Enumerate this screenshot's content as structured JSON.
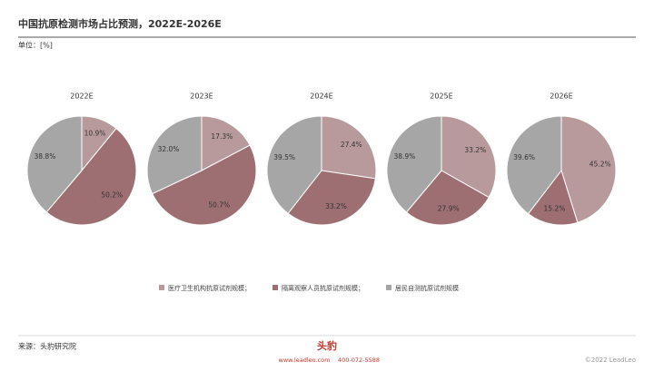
{
  "header": {
    "title": "中国抗原检测市场占比预测，2022E-2026E",
    "unit": "单位：[%]"
  },
  "chart_data": [
    {
      "type": "pie",
      "title": "2022E",
      "categories": [
        "医疗卫生机构抗原试剂规模；",
        "隔离观察人员抗原试剂规模；",
        "居民自测抗原试剂规模"
      ],
      "colors": [
        "#b99a9c",
        "#9e6f72",
        "#a6a6a6"
      ],
      "values": [
        10.9,
        50.2,
        38.8
      ],
      "value_labels": [
        "10.9%",
        "50.2%",
        "38.8%"
      ]
    },
    {
      "type": "pie",
      "title": "2023E",
      "categories": [
        "医疗卫生机构抗原试剂规模；",
        "隔离观察人员抗原试剂规模；",
        "居民自测抗原试剂规模"
      ],
      "colors": [
        "#b99a9c",
        "#9e6f72",
        "#a6a6a6"
      ],
      "values": [
        17.3,
        50.7,
        32.0
      ],
      "value_labels": [
        "17.3%",
        "50.7%",
        "32.0%"
      ]
    },
    {
      "type": "pie",
      "title": "2024E",
      "categories": [
        "医疗卫生机构抗原试剂规模；",
        "隔离观察人员抗原试剂规模；",
        "居民自测抗原试剂规模"
      ],
      "colors": [
        "#b99a9c",
        "#9e6f72",
        "#a6a6a6"
      ],
      "values": [
        27.4,
        33.2,
        39.5
      ],
      "value_labels": [
        "27.4%",
        "33.2%",
        "39.5%"
      ]
    },
    {
      "type": "pie",
      "title": "2025E",
      "categories": [
        "医疗卫生机构抗原试剂规模；",
        "隔离观察人员抗原试剂规模；",
        "居民自测抗原试剂规模"
      ],
      "colors": [
        "#b99a9c",
        "#9e6f72",
        "#a6a6a6"
      ],
      "values": [
        33.2,
        27.9,
        38.9
      ],
      "value_labels": [
        "33.2%",
        "27.9%",
        "38.9%"
      ]
    },
    {
      "type": "pie",
      "title": "2026E",
      "categories": [
        "医疗卫生机构抗原试剂规模；",
        "隔离观察人员抗原试剂规模；",
        "居民自测抗原试剂规模"
      ],
      "colors": [
        "#b99a9c",
        "#9e6f72",
        "#a6a6a6"
      ],
      "values": [
        45.2,
        15.2,
        39.6
      ],
      "value_labels": [
        "45.2%",
        "15.2%",
        "39.6%"
      ]
    }
  ],
  "footer": {
    "source": "来源：头豹研究院",
    "logo": "头豹",
    "website": "www.leadleo.com",
    "phone": "400-072-5588",
    "copyright": "©2022 LeadLeo"
  }
}
